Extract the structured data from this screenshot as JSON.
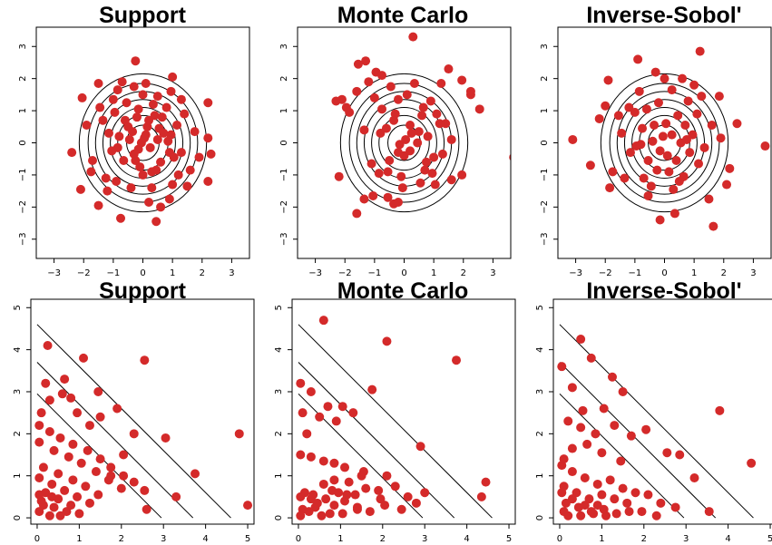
{
  "colors": {
    "points": "#d42a2a",
    "lines": "#000000",
    "background": "#ffffff"
  },
  "chart_data": [
    {
      "type": "scatter",
      "title": "Support",
      "contours": "circles",
      "contour_radii": [
        0.55,
        0.85,
        1.1,
        1.35,
        1.6,
        1.85,
        2.15
      ],
      "xlim": [
        -3.6,
        3.6
      ],
      "ylim": [
        -3.6,
        3.6
      ],
      "xticks": [
        -3,
        -2,
        -1,
        0,
        1,
        2,
        3
      ],
      "yticks": [
        -3,
        -2,
        -1,
        0,
        1,
        2,
        3
      ],
      "x": [
        -0.25,
        1.0,
        0.45,
        -2.4,
        2.2,
        0.6,
        -1.5,
        -2.1,
        -0.75,
        2.3,
        2.2,
        -2.05,
        2.2,
        -1.5,
        -0.85,
        0.95,
        1.5,
        -1.2,
        0.2,
        0.9,
        -0.7,
        1.3,
        -1.9,
        0.1,
        -0.3,
        0.5,
        -1.0,
        1.4,
        -1.45,
        1.75,
        1.9,
        -1.7,
        0.0,
        1.2,
        -1.25,
        0.8,
        -0.55,
        0.35,
        1.6,
        -1.75,
        1.0,
        -0.9,
        0.3,
        -0.4,
        -1.35,
        1.15,
        1.3,
        -1.15,
        -0.15,
        0.65,
        -0.95,
        0.95,
        -0.6,
        0.4,
        -0.2,
        0.15,
        0.7,
        -0.5,
        0.55,
        -0.8,
        0.2,
        -0.35,
        0.9,
        -1.05,
        1.05,
        -0.1,
        0.45,
        0.0,
        -0.65,
        0.6,
        -0.25,
        0.3,
        0.85,
        -0.85,
        0.1,
        -0.45,
        0.5,
        -0.15,
        0.25,
        -0.3,
        -0.05,
        0.05
      ],
      "y": [
        2.55,
        2.05,
        -2.45,
        -0.3,
        0.15,
        -2.0,
        -1.95,
        -1.45,
        -2.35,
        -0.35,
        -1.2,
        1.4,
        1.25,
        1.85,
        1.65,
        1.6,
        -1.35,
        -1.5,
        -1.85,
        -1.75,
        1.9,
        1.35,
        0.55,
        1.85,
        1.75,
        1.45,
        1.35,
        0.9,
        1.1,
        0.35,
        -0.45,
        -0.55,
        1.5,
        -1.0,
        -1.1,
        1.1,
        1.25,
        1.2,
        -0.85,
        -0.9,
        -1.3,
        -1.2,
        -1.4,
        -1.4,
        0.7,
        0.55,
        -0.3,
        0.3,
        1.05,
        0.8,
        0.95,
        0.25,
        0.7,
        0.85,
        0.8,
        0.5,
        0.3,
        0.5,
        0.45,
        0.2,
        0.7,
        0.35,
        -0.3,
        -0.25,
        -0.45,
        -0.75,
        -0.85,
        -1.0,
        -0.55,
        -0.6,
        -0.55,
        -0.9,
        0.05,
        -0.15,
        0.25,
        0.1,
        0.1,
        -0.2,
        -0.15,
        -0.35,
        0.0,
        0.15
      ]
    },
    {
      "type": "scatter",
      "title": "Monte Carlo",
      "contours": "circles",
      "contour_radii": [
        0.55,
        0.85,
        1.1,
        1.35,
        1.6,
        1.85,
        2.15
      ],
      "xlim": [
        -3.6,
        3.6
      ],
      "ylim": [
        -3.6,
        3.6
      ],
      "xticks": [
        -3,
        -2,
        -1,
        0,
        1,
        2,
        3
      ],
      "yticks": [
        -3,
        -2,
        -1,
        0,
        1,
        2,
        3
      ],
      "x": [
        0.3,
        3.7,
        -2.2,
        -1.6,
        -1.35,
        -1.05,
        -0.55,
        -0.35,
        -0.2,
        -0.05,
        0.55,
        1.05,
        1.6,
        1.95,
        2.25,
        2.55,
        2.25,
        -2.3,
        -2.1,
        -1.95,
        -1.6,
        -1.2,
        -1.85,
        -1.55,
        -1.3,
        -0.95,
        -0.75,
        1.5,
        1.95,
        1.25,
        1.4,
        0.9,
        1.6,
        -1.0,
        -0.75,
        -0.45,
        -0.2,
        0.1,
        0.35,
        0.65,
        1.1,
        -0.6,
        -0.35,
        0.2,
        0.5,
        0.8,
        -0.15,
        0.05,
        0.25,
        0.45,
        -0.2,
        0.0,
        0.2,
        -0.5,
        0.75,
        1.0,
        1.3,
        0.7,
        -1.1,
        -0.85,
        -0.55,
        -0.1,
        0.95,
        1.2,
        0.6,
        -0.3,
        -0.8,
        -1.35
      ],
      "y": [
        3.3,
        -0.45,
        -1.05,
        -2.2,
        -1.75,
        -1.65,
        -1.7,
        -1.9,
        -1.85,
        -1.4,
        -1.25,
        -1.3,
        -1.15,
        -1.0,
        1.6,
        1.05,
        1.5,
        1.3,
        1.35,
        1.1,
        1.6,
        1.9,
        0.95,
        2.45,
        2.55,
        2.2,
        2.1,
        2.3,
        1.95,
        1.85,
        0.6,
        1.3,
        0.1,
        1.4,
        1.05,
        1.75,
        1.35,
        1.5,
        1.85,
        1.1,
        0.9,
        0.45,
        0.7,
        0.55,
        0.35,
        0.2,
        -0.05,
        0.1,
        0.3,
        0.0,
        -0.3,
        -0.4,
        -0.25,
        -0.55,
        -0.6,
        -0.45,
        -0.35,
        -0.85,
        -0.65,
        -0.95,
        -0.9,
        -1.05,
        -0.95,
        0.6,
        0.85,
        0.9,
        0.3,
        0.4
      ]
    },
    {
      "type": "scatter",
      "title": "Inverse-Sobol'",
      "contours": "circles",
      "contour_radii": [
        0.55,
        0.85,
        1.1,
        1.35,
        1.6,
        1.85,
        2.15
      ],
      "xlim": [
        -3.6,
        3.6
      ],
      "ylim": [
        -3.6,
        3.6
      ],
      "xticks": [
        -3,
        -2,
        -1,
        0,
        1,
        2,
        3
      ],
      "yticks": [
        -3,
        -2,
        -1,
        0,
        1,
        2,
        3
      ],
      "x": [
        1.2,
        -0.9,
        -1.9,
        -0.3,
        3.4,
        -3.1,
        1.65,
        -0.15,
        -2.5,
        -1.85,
        0.35,
        -1.35,
        -1.75,
        -0.55,
        1.5,
        2.1,
        2.2,
        2.45,
        -2.2,
        0.0,
        0.6,
        1.85,
        1.0,
        0.25,
        -0.85,
        -1.2,
        -2.0,
        -1.55,
        1.25,
        1.9,
        0.8,
        -0.2,
        -1.0,
        -0.6,
        0.45,
        1.1,
        -1.45,
        1.6,
        -0.35,
        0.05,
        0.7,
        -0.75,
        0.95,
        1.35,
        -1.15,
        -0.4,
        0.25,
        0.55,
        -0.95,
        0.85,
        -0.15,
        0.4,
        -0.55,
        1.15,
        -0.25,
        0.15,
        0.65,
        -0.7,
        0.5,
        -0.45,
        0.3,
        -0.05,
        0.1,
        0.75,
        -0.8
      ],
      "y": [
        2.85,
        2.6,
        1.95,
        2.2,
        -0.1,
        0.1,
        -2.6,
        -2.4,
        -0.7,
        -1.4,
        -2.2,
        -1.1,
        -0.9,
        -1.65,
        -1.75,
        -1.3,
        -0.8,
        0.6,
        0.75,
        2.0,
        2.0,
        1.45,
        1.8,
        1.65,
        1.6,
        1.1,
        1.15,
        0.85,
        1.45,
        0.15,
        1.3,
        1.25,
        0.95,
        1.05,
        0.85,
        0.9,
        0.3,
        0.55,
        0.55,
        0.6,
        0.55,
        0.45,
        0.25,
        -0.15,
        -0.3,
        0.05,
        0.25,
        0.0,
        -0.1,
        -0.3,
        -0.25,
        -0.55,
        -0.55,
        -0.65,
        -0.85,
        -0.9,
        -1.05,
        -1.1,
        -1.2,
        -1.35,
        -1.45,
        0.2,
        -0.4,
        0.1,
        -0.05
      ]
    },
    {
      "type": "scatter",
      "title": "Support",
      "contours": "diagonals",
      "contour_intercepts": [
        2.95,
        3.7,
        4.6
      ],
      "xlim": [
        -0.15,
        5.15
      ],
      "ylim": [
        -0.15,
        5.2
      ],
      "xticks": [
        0,
        1,
        2,
        3,
        4,
        5
      ],
      "yticks": [
        0,
        1,
        2,
        3,
        4,
        5
      ],
      "x": [
        0.25,
        1.1,
        2.55,
        0.65,
        0.2,
        1.45,
        0.6,
        0.8,
        1.9,
        0.3,
        0.95,
        1.5,
        2.3,
        1.25,
        2.05,
        3.05,
        1.75,
        3.75,
        0.1,
        4.8,
        5.0,
        2.55,
        3.3,
        0.05,
        0.3,
        0.55,
        0.85,
        1.2,
        1.5,
        1.75,
        2.05,
        2.3,
        2.6,
        0.05,
        0.4,
        0.75,
        1.05,
        1.4,
        1.7,
        2.0,
        0.15,
        0.5,
        0.85,
        1.15,
        1.45,
        0.05,
        0.35,
        0.65,
        0.95,
        1.25,
        0.2,
        0.5,
        0.8,
        0.1,
        0.4,
        0.7,
        1.0,
        0.05,
        0.3,
        0.55,
        0.15,
        0.05,
        0.35
      ],
      "y": [
        4.1,
        3.8,
        3.75,
        3.3,
        3.2,
        3.0,
        2.95,
        2.85,
        2.6,
        2.8,
        2.5,
        2.4,
        2.0,
        2.2,
        1.5,
        1.9,
        1.0,
        1.05,
        2.5,
        2.0,
        0.3,
        0.65,
        0.5,
        2.2,
        2.05,
        1.9,
        1.75,
        1.6,
        1.4,
        1.2,
        1.0,
        0.85,
        0.2,
        1.8,
        1.6,
        1.45,
        1.3,
        1.1,
        0.9,
        0.7,
        1.2,
        1.05,
        0.9,
        0.75,
        0.55,
        0.95,
        0.8,
        0.65,
        0.5,
        0.35,
        0.6,
        0.45,
        0.3,
        0.4,
        0.25,
        0.15,
        0.1,
        0.15,
        0.05,
        0.05,
        0.3,
        0.55,
        0.5
      ]
    },
    {
      "type": "scatter",
      "title": "Monte Carlo",
      "contours": "diagonals",
      "contour_intercepts": [
        2.95,
        3.7,
        4.6
      ],
      "xlim": [
        -0.15,
        5.15
      ],
      "ylim": [
        -0.15,
        5.2
      ],
      "xticks": [
        0,
        1,
        2,
        3,
        4,
        5
      ],
      "yticks": [
        0,
        1,
        2,
        3,
        4,
        5
      ],
      "x": [
        0.6,
        2.1,
        3.75,
        0.05,
        0.3,
        0.7,
        1.05,
        1.3,
        1.75,
        0.1,
        0.5,
        0.9,
        0.2,
        0.05,
        0.3,
        0.6,
        0.85,
        1.1,
        1.5,
        2.1,
        2.9,
        4.35,
        4.45,
        3.0,
        0.05,
        0.3,
        0.6,
        0.85,
        1.2,
        1.55,
        1.9,
        2.3,
        2.6,
        2.8,
        0.1,
        0.4,
        0.75,
        1.05,
        1.4,
        1.7,
        2.05,
        2.45,
        0.15,
        0.45,
        0.8,
        1.1,
        1.35,
        1.6,
        1.95,
        0.25,
        0.55,
        0.85,
        1.15,
        1.4,
        0.05,
        0.35,
        0.65,
        0.95
      ],
      "y": [
        4.7,
        4.2,
        3.75,
        3.2,
        3.0,
        2.65,
        2.65,
        2.5,
        3.05,
        2.5,
        2.4,
        2.3,
        2.0,
        1.5,
        1.45,
        1.35,
        1.3,
        1.2,
        1.0,
        1.0,
        1.7,
        0.5,
        0.85,
        0.6,
        0.5,
        0.45,
        0.8,
        0.9,
        0.85,
        1.1,
        0.65,
        0.75,
        0.5,
        0.35,
        0.2,
        0.25,
        0.1,
        0.1,
        0.25,
        0.15,
        0.3,
        0.2,
        0.6,
        0.35,
        0.65,
        0.4,
        0.55,
        0.7,
        0.45,
        0.15,
        0.05,
        0.3,
        0.55,
        0.2,
        0.05,
        0.55,
        0.45,
        0.6
      ]
    },
    {
      "type": "scatter",
      "title": "Inverse-Sobol'",
      "contours": "diagonals",
      "contour_intercepts": [
        2.95,
        3.7,
        4.6
      ],
      "xlim": [
        -0.15,
        5.15
      ],
      "ylim": [
        -0.15,
        5.2
      ],
      "xticks": [
        0,
        1,
        2,
        3,
        4,
        5
      ],
      "yticks": [
        0,
        1,
        2,
        3,
        4,
        5
      ],
      "x": [
        0.5,
        0.75,
        1.25,
        1.5,
        0.05,
        0.3,
        0.55,
        1.05,
        0.2,
        0.5,
        0.85,
        1.3,
        1.7,
        0.1,
        0.3,
        0.65,
        1.0,
        1.45,
        2.05,
        2.55,
        2.85,
        3.8,
        4.55,
        3.2,
        3.55,
        0.05,
        0.3,
        0.6,
        0.9,
        1.2,
        1.5,
        1.8,
        2.1,
        2.4,
        2.75,
        0.1,
        0.4,
        0.7,
        1.0,
        1.3,
        1.6,
        1.95,
        2.3,
        0.15,
        0.45,
        0.75,
        1.05,
        1.35,
        1.65,
        0.2,
        0.5,
        0.8,
        1.1,
        0.05,
        0.3,
        0.6,
        0.9,
        0.1
      ],
      "y": [
        4.25,
        3.8,
        3.35,
        3.0,
        3.6,
        3.1,
        2.55,
        2.6,
        2.3,
        2.15,
        2.0,
        2.2,
        1.95,
        1.4,
        1.65,
        1.75,
        1.55,
        1.35,
        2.1,
        1.55,
        1.5,
        2.55,
        1.3,
        0.95,
        0.15,
        1.25,
        1.1,
        0.95,
        0.8,
        0.9,
        0.7,
        0.6,
        0.55,
        0.35,
        0.25,
        0.75,
        0.6,
        0.45,
        0.55,
        0.45,
        0.35,
        0.15,
        0.05,
        0.35,
        0.25,
        0.15,
        0.2,
        0.1,
        0.15,
        0.05,
        0.05,
        0.1,
        0.05,
        0.6,
        0.45,
        0.3,
        0.3,
        0.15
      ]
    }
  ]
}
